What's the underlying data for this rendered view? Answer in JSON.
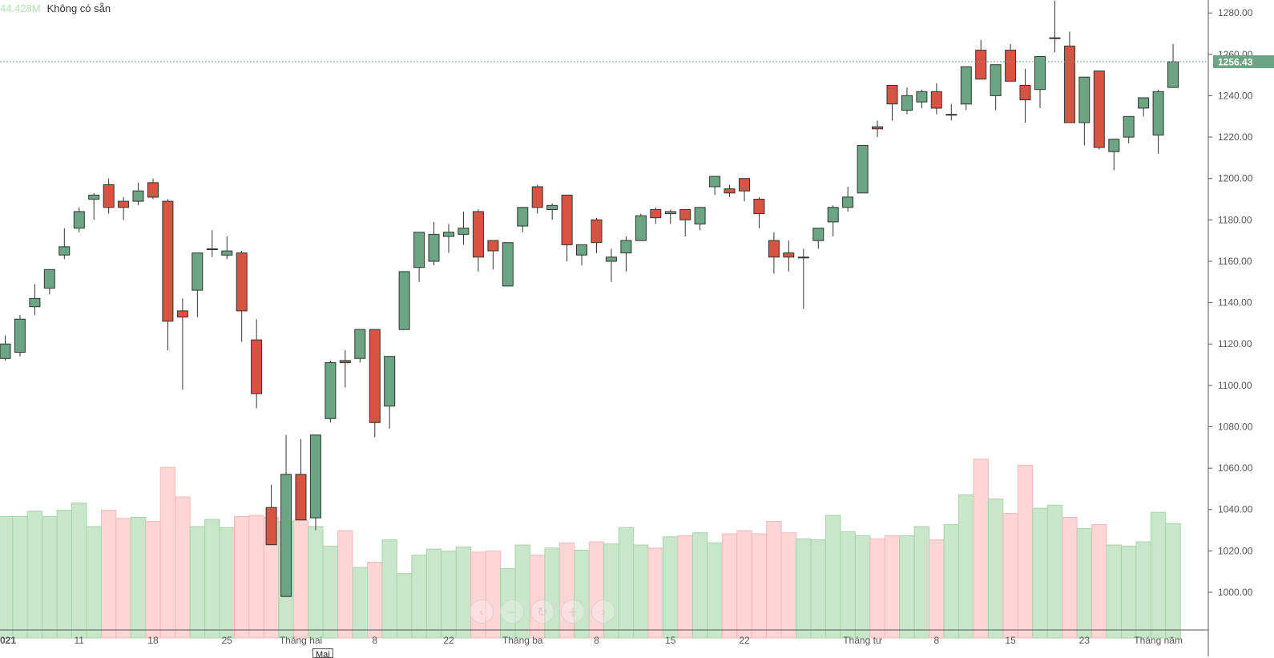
{
  "legend": {
    "volume": "44.428M",
    "status": "Không có sẵn"
  },
  "tooltip": "Mai",
  "colors": {
    "up_body": "#6ba583",
    "down_body": "#d75442",
    "up_volume": "#c8e6c9",
    "down_volume": "#ffd5d5",
    "last_price_badge": "#6ba583",
    "axis_text": "#555555"
  },
  "nav_icons": [
    "chevron-left-icon",
    "minus-icon",
    "reset-icon",
    "plus-icon",
    "chevron-right-icon"
  ],
  "chart_data": {
    "type": "candlestick",
    "y_axis": {
      "position": "right",
      "ticks": [
        1000,
        1020,
        1040,
        1060,
        1080,
        1100,
        1120,
        1140,
        1160,
        1180,
        1200,
        1220,
        1240,
        1260,
        1280
      ],
      "tick_labels": [
        "1000.00",
        "1020.00",
        "1040.00",
        "1060.00",
        "1080.00",
        "1100.00",
        "1120.00",
        "1140.00",
        "1160.00",
        "1180.00",
        "1200.00",
        "1220.00",
        "1240.00",
        "1260.00",
        "1280.00"
      ],
      "ylim": [
        987,
        1290
      ]
    },
    "last_price": {
      "value": 1256.43,
      "label": "1256.43"
    },
    "x_labels": [
      {
        "index": 0,
        "label": "021"
      },
      {
        "index": 5,
        "label": "11"
      },
      {
        "index": 10,
        "label": "18"
      },
      {
        "index": 15,
        "label": "25"
      },
      {
        "index": 20,
        "label": "Tháng hai"
      },
      {
        "index": 25,
        "label": "8"
      },
      {
        "index": 30,
        "label": "22"
      },
      {
        "index": 35,
        "label": "Tháng ba"
      },
      {
        "index": 40,
        "label": "8"
      },
      {
        "index": 45,
        "label": "15"
      },
      {
        "index": 50,
        "label": "22"
      },
      {
        "index": 58,
        "label": "Tháng tư"
      },
      {
        "index": 63,
        "label": "8"
      },
      {
        "index": 68,
        "label": "15"
      },
      {
        "index": 73,
        "label": "23"
      },
      {
        "index": 78,
        "label": "Tháng năm"
      }
    ],
    "ohlc": [
      [
        1113,
        1124,
        1112,
        1120
      ],
      [
        1116,
        1134,
        1114,
        1132
      ],
      [
        1138,
        1149,
        1134,
        1142
      ],
      [
        1147,
        1154,
        1144,
        1156
      ],
      [
        1163,
        1176,
        1161,
        1167
      ],
      [
        1176,
        1186,
        1174,
        1184
      ],
      [
        1190,
        1193,
        1180,
        1192
      ],
      [
        1197,
        1200,
        1183,
        1186
      ],
      [
        1189,
        1191,
        1180,
        1186
      ],
      [
        1189,
        1198,
        1187,
        1194
      ],
      [
        1198,
        1200,
        1190,
        1191
      ],
      [
        1189,
        1190,
        1117,
        1131
      ],
      [
        1136,
        1142,
        1098,
        1133
      ],
      [
        1146,
        1163,
        1133,
        1164
      ],
      [
        1166,
        1175,
        1162,
        1166
      ],
      [
        1163,
        1172,
        1161,
        1165
      ],
      [
        1164,
        1165,
        1121,
        1136
      ],
      [
        1122,
        1132,
        1089,
        1096
      ],
      [
        1041,
        1052,
        1023,
        1023
      ],
      [
        998,
        1076,
        998,
        1057
      ],
      [
        1057,
        1074,
        1035,
        1035
      ],
      [
        1036,
        1076,
        1030,
        1076
      ],
      [
        1084,
        1112,
        1082,
        1111
      ],
      [
        1112,
        1117,
        1099,
        1111
      ],
      [
        1113,
        1127,
        1111,
        1127
      ],
      [
        1127,
        1127,
        1075,
        1082
      ],
      [
        1090,
        1114,
        1079,
        1114
      ],
      [
        1127,
        1155,
        1127,
        1155
      ],
      [
        1157,
        1174,
        1150,
        1174
      ],
      [
        1160,
        1179,
        1158,
        1173
      ],
      [
        1172,
        1178,
        1164,
        1174
      ],
      [
        1173,
        1184,
        1168,
        1176
      ],
      [
        1184,
        1185,
        1155,
        1162
      ],
      [
        1170,
        1170,
        1156,
        1165
      ],
      [
        1148,
        1168,
        1148,
        1169
      ],
      [
        1177,
        1186,
        1174,
        1186
      ],
      [
        1196,
        1197,
        1183,
        1186
      ],
      [
        1185,
        1188,
        1180,
        1187
      ],
      [
        1192,
        1192,
        1160,
        1168
      ],
      [
        1163,
        1168,
        1158,
        1168
      ],
      [
        1180,
        1181,
        1164,
        1169
      ],
      [
        1160,
        1166,
        1150,
        1162
      ],
      [
        1164,
        1172,
        1155,
        1170
      ],
      [
        1170,
        1183,
        1170,
        1182
      ],
      [
        1185,
        1186,
        1178,
        1181
      ],
      [
        1183,
        1185,
        1178,
        1184
      ],
      [
        1185,
        1185,
        1172,
        1180
      ],
      [
        1178,
        1186,
        1175,
        1186
      ],
      [
        1196,
        1201,
        1192,
        1201
      ],
      [
        1195,
        1197,
        1191,
        1193
      ],
      [
        1200,
        1200,
        1189,
        1194
      ],
      [
        1190,
        1191,
        1176,
        1183
      ],
      [
        1170,
        1174,
        1154,
        1162
      ],
      [
        1164,
        1170,
        1155,
        1162
      ],
      [
        1162,
        1166,
        1137,
        1162
      ],
      [
        1170,
        1176,
        1166,
        1176
      ],
      [
        1179,
        1187,
        1172,
        1186
      ],
      [
        1186,
        1196,
        1184,
        1191
      ],
      [
        1193,
        1216,
        1193,
        1216
      ],
      [
        1225,
        1228,
        1220,
        1224
      ],
      [
        1245,
        1245,
        1228,
        1236
      ],
      [
        1233,
        1244,
        1231,
        1240
      ],
      [
        1237,
        1243,
        1234,
        1242
      ],
      [
        1242,
        1246,
        1231,
        1234
      ],
      [
        1231,
        1236,
        1228,
        1231
      ],
      [
        1236,
        1254,
        1233,
        1254
      ],
      [
        1262,
        1267,
        1248,
        1248
      ],
      [
        1240,
        1255,
        1233,
        1255
      ],
      [
        1262,
        1265,
        1247,
        1247
      ],
      [
        1245,
        1253,
        1227,
        1238
      ],
      [
        1243,
        1259,
        1234,
        1259
      ],
      [
        1268,
        1286,
        1261,
        1268
      ],
      [
        1264,
        1271,
        1227,
        1227
      ],
      [
        1227,
        1249,
        1216,
        1249
      ],
      [
        1252,
        1252,
        1214,
        1215
      ],
      [
        1213,
        1219,
        1204,
        1219
      ],
      [
        1220,
        1230,
        1217,
        1230
      ],
      [
        1234,
        1239,
        1230,
        1239
      ],
      [
        1221,
        1243,
        1212,
        1242
      ],
      [
        1244,
        1265,
        1244,
        1256.43
      ]
    ],
    "volume_heights": [
      0.595,
      0.595,
      0.62,
      0.595,
      0.625,
      0.66,
      0.545,
      0.625,
      0.585,
      0.59,
      0.57,
      0.835,
      0.69,
      0.545,
      0.58,
      0.54,
      0.595,
      0.6,
      0.59,
      0.57,
      0.575,
      0.545,
      0.45,
      0.525,
      0.345,
      0.37,
      0.48,
      0.315,
      0.405,
      0.435,
      0.425,
      0.445,
      0.42,
      0.425,
      0.34,
      0.455,
      0.405,
      0.44,
      0.465,
      0.43,
      0.47,
      0.46,
      0.54,
      0.455,
      0.44,
      0.495,
      0.5,
      0.515,
      0.465,
      0.51,
      0.525,
      0.51,
      0.57,
      0.515,
      0.485,
      0.48,
      0.6,
      0.52,
      0.5,
      0.485,
      0.5,
      0.5,
      0.545,
      0.48,
      0.555,
      0.7,
      0.875,
      0.68,
      0.61,
      0.845,
      0.635,
      0.65,
      0.59,
      0.535,
      0.555,
      0.455,
      0.45,
      0.47,
      0.615,
      0.56
    ]
  }
}
